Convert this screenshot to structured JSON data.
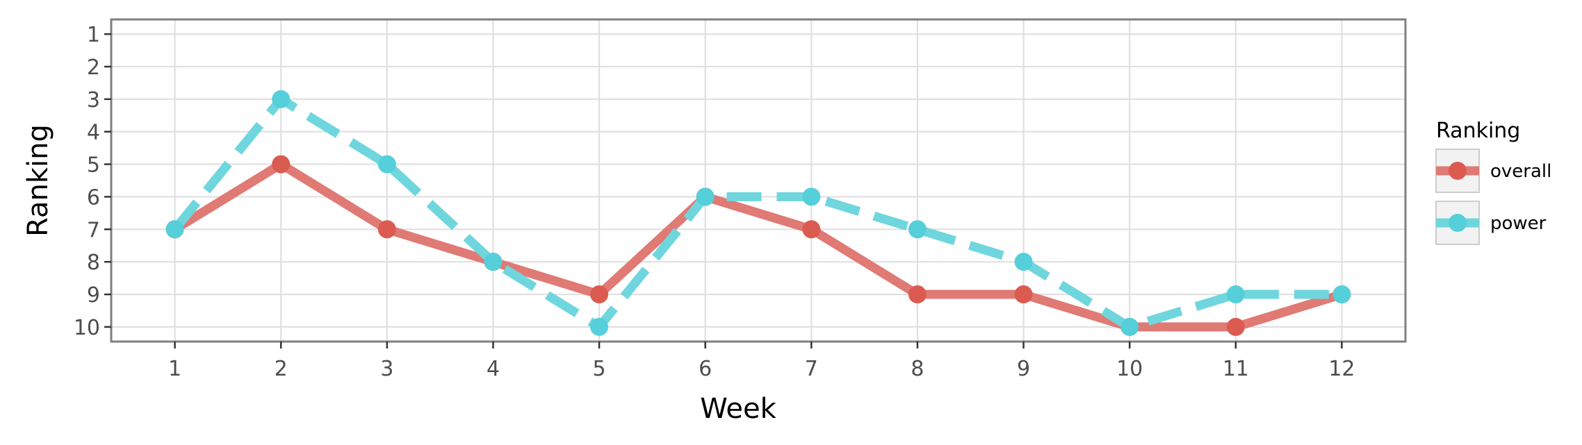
{
  "chart_data": {
    "type": "line",
    "title": "",
    "xlabel": "Week",
    "ylabel": "Ranking",
    "x": [
      1,
      2,
      3,
      4,
      5,
      6,
      7,
      8,
      9,
      10,
      11,
      12
    ],
    "x_tick_labels": [
      "1",
      "2",
      "3",
      "4",
      "5",
      "6",
      "7",
      "8",
      "9",
      "10",
      "11",
      "12"
    ],
    "y_tick_labels": [
      "1",
      "2",
      "3",
      "4",
      "5",
      "6",
      "7",
      "8",
      "9",
      "10"
    ],
    "xlim": [
      0.4,
      12.6
    ],
    "ylim": [
      10.45,
      0.55
    ],
    "y_reversed": true,
    "grid": true,
    "legend": {
      "title": "Ranking",
      "placement": "right"
    },
    "series": [
      {
        "name": "overall",
        "values": [
          7,
          5,
          7,
          8,
          9,
          6,
          7,
          9,
          9,
          10,
          10,
          9
        ],
        "color": "#e07a74",
        "marker_color": "#db5b51",
        "line_style": "solid"
      },
      {
        "name": "power",
        "values": [
          7,
          3,
          5,
          8,
          10,
          6,
          6,
          7,
          8,
          10,
          9,
          9
        ],
        "color": "#6fd6de",
        "marker_color": "#55cfda",
        "line_style": "dashed"
      }
    ]
  }
}
